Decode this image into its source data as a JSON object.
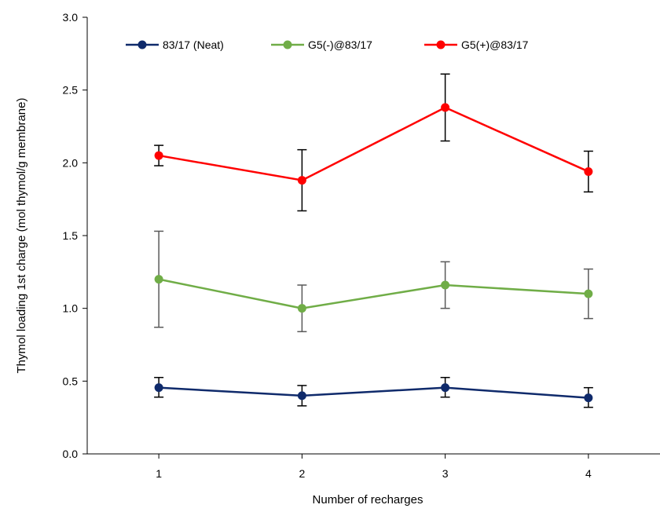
{
  "chart_data": {
    "type": "line",
    "xlabel": "Number  of recharges",
    "ylabel": "Thymol loading 1st charge (mol thymol/g membrane)",
    "x": [
      1,
      2,
      3,
      4
    ],
    "x_tick_labels": [
      "1",
      "2",
      "3",
      "4"
    ],
    "xlim": [
      0.5,
      4.5
    ],
    "ylim": [
      0,
      3
    ],
    "y_tick_labels": [
      "0.0",
      "0.5",
      "1.0",
      "1.5",
      "2.0",
      "2.5",
      "3.0"
    ],
    "grid": false,
    "legend_position": "top",
    "series": [
      {
        "name": "83/17 (Neat)",
        "color": "#0f2a6b",
        "errorbar_color": "#000000",
        "values": [
          0.455,
          0.4,
          0.455,
          0.385
        ],
        "err_low": [
          0.39,
          0.33,
          0.39,
          0.32
        ],
        "err_high": [
          0.525,
          0.47,
          0.525,
          0.455
        ]
      },
      {
        "name": "G5(-)@83/17",
        "color": "#70ad47",
        "errorbar_color": "#595959",
        "values": [
          1.2,
          1.0,
          1.16,
          1.1
        ],
        "err_low": [
          0.87,
          0.84,
          1.0,
          0.93
        ],
        "err_high": [
          1.53,
          1.16,
          1.32,
          1.27
        ]
      },
      {
        "name": "G5(+)@83/17",
        "color": "#ff0000",
        "errorbar_color": "#000000",
        "values": [
          2.05,
          1.88,
          2.38,
          1.94
        ],
        "err_low": [
          1.98,
          1.67,
          2.15,
          1.8
        ],
        "err_high": [
          2.12,
          2.09,
          2.61,
          2.08
        ]
      }
    ]
  }
}
